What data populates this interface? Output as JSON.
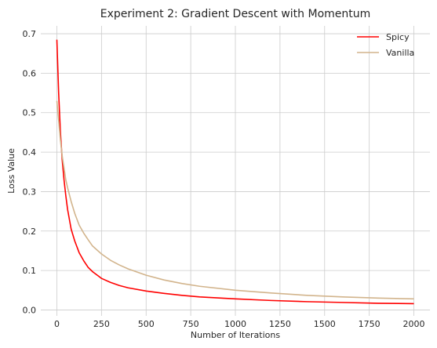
{
  "chart_data": {
    "type": "line",
    "title": "Experiment 2: Gradient Descent with Momentum",
    "xlabel": "Number of Iterations",
    "ylabel": "Loss Value",
    "xlim": [
      -90,
      2090
    ],
    "ylim": [
      -0.015,
      0.72
    ],
    "x_ticks": [
      0,
      250,
      500,
      750,
      1000,
      1250,
      1500,
      1750,
      2000
    ],
    "y_ticks": [
      0.0,
      0.1,
      0.2,
      0.3,
      0.4,
      0.5,
      0.6,
      0.7
    ],
    "x_tick_labels": [
      "0",
      "250",
      "500",
      "750",
      "1000",
      "1250",
      "1500",
      "1750",
      "2000"
    ],
    "y_tick_labels": [
      "0.0",
      "0.1",
      "0.2",
      "0.3",
      "0.4",
      "0.5",
      "0.6",
      "0.7"
    ],
    "grid": true,
    "legend_position": "top-right",
    "series": [
      {
        "name": "Spicy",
        "color": "#ff0000",
        "x": [
          0,
          10,
          20,
          30,
          40,
          50,
          60,
          80,
          100,
          125,
          150,
          175,
          200,
          250,
          300,
          350,
          400,
          500,
          600,
          700,
          800,
          1000,
          1200,
          1400,
          1600,
          1800,
          2000
        ],
        "values": [
          0.685,
          0.55,
          0.45,
          0.38,
          0.33,
          0.29,
          0.255,
          0.205,
          0.175,
          0.145,
          0.125,
          0.108,
          0.097,
          0.08,
          0.07,
          0.062,
          0.056,
          0.048,
          0.042,
          0.037,
          0.033,
          0.028,
          0.024,
          0.021,
          0.019,
          0.017,
          0.016
        ]
      },
      {
        "name": "Vanilla",
        "color": "#d2b48c",
        "x": [
          0,
          10,
          20,
          30,
          40,
          50,
          60,
          80,
          100,
          125,
          150,
          175,
          200,
          250,
          300,
          350,
          400,
          500,
          600,
          700,
          800,
          1000,
          1200,
          1400,
          1600,
          1800,
          2000
        ],
        "values": [
          0.53,
          0.48,
          0.43,
          0.39,
          0.36,
          0.33,
          0.31,
          0.275,
          0.245,
          0.215,
          0.195,
          0.178,
          0.162,
          0.142,
          0.126,
          0.114,
          0.104,
          0.088,
          0.076,
          0.067,
          0.06,
          0.05,
          0.043,
          0.037,
          0.033,
          0.03,
          0.028
        ]
      }
    ]
  }
}
